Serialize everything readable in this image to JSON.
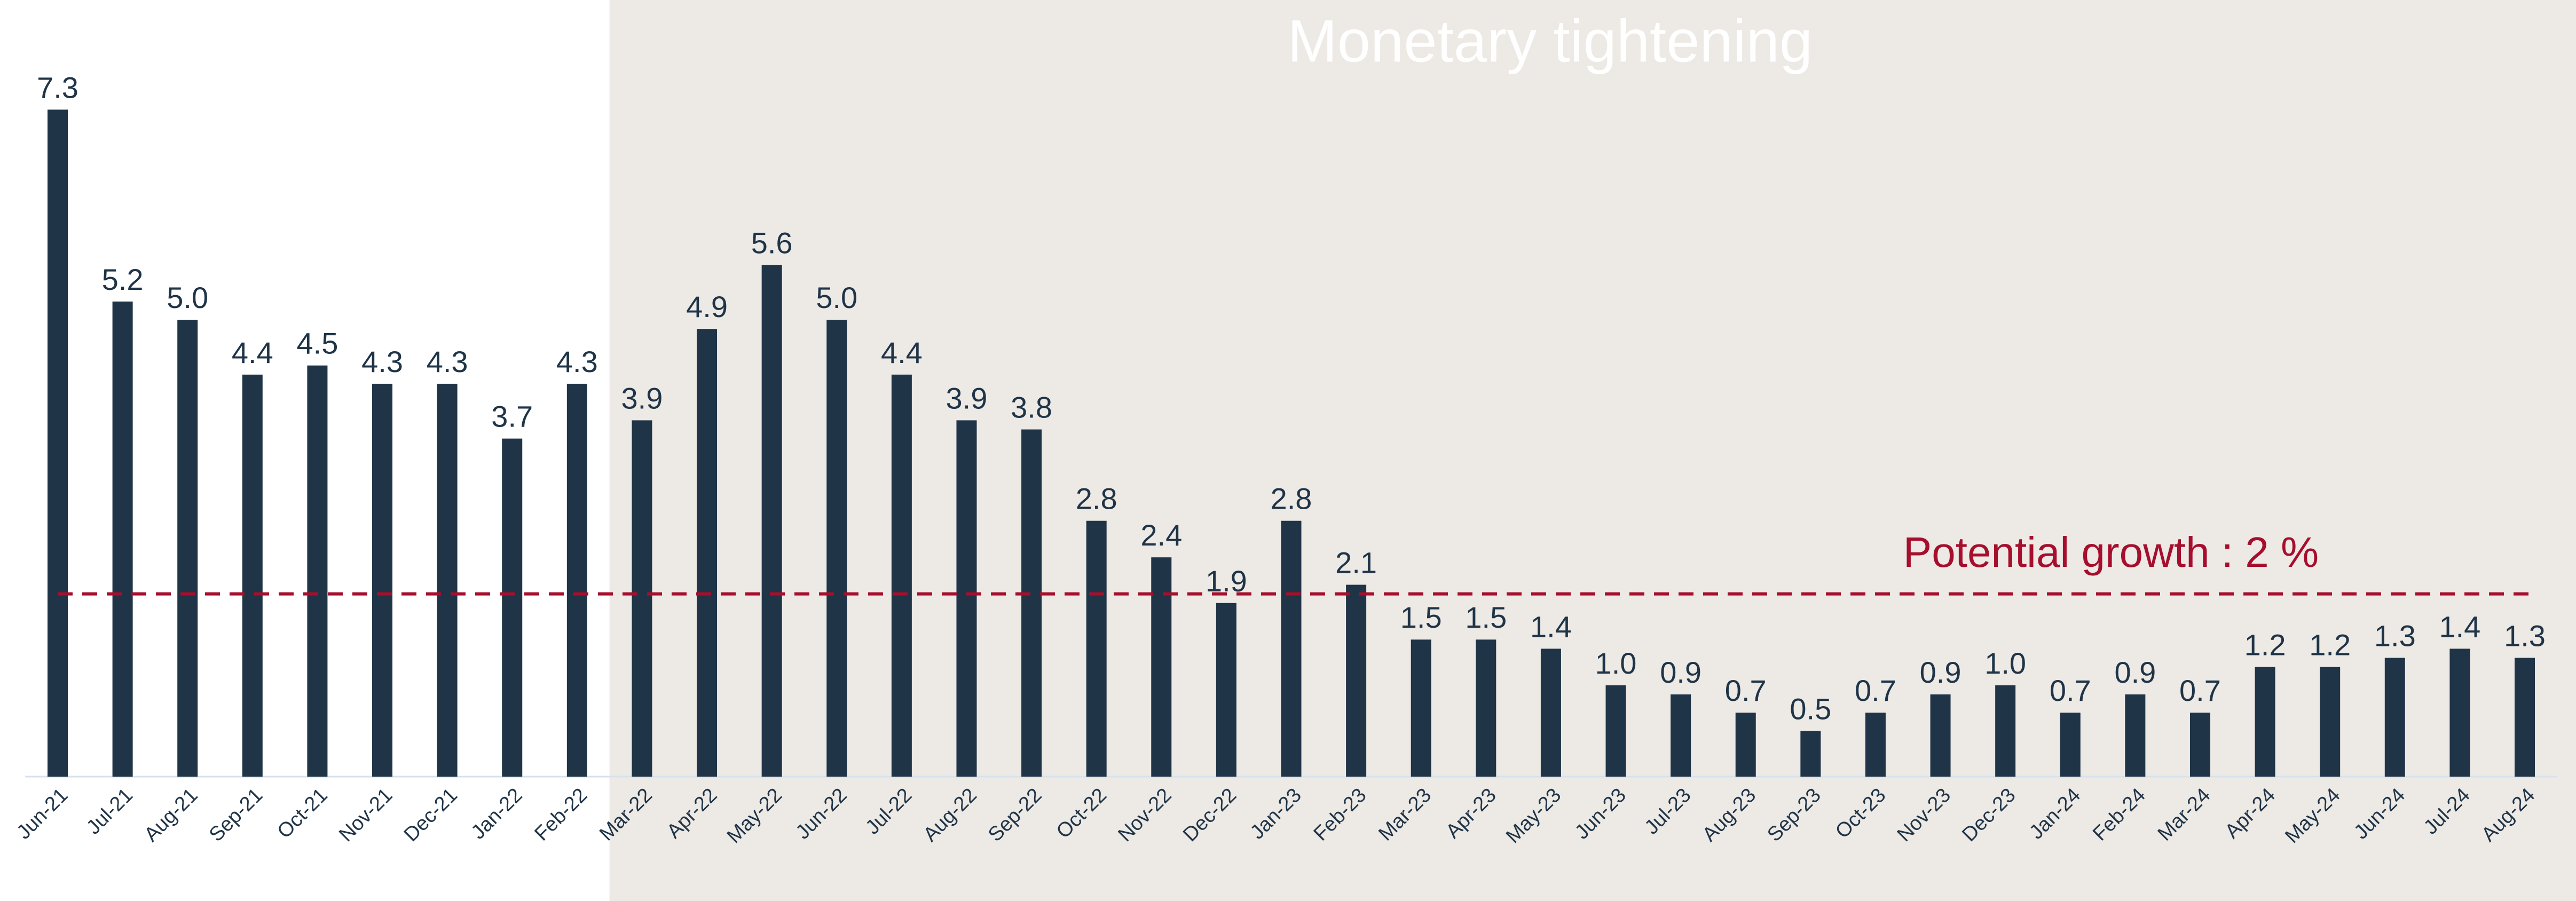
{
  "chart_data": {
    "type": "bar",
    "categories": [
      "Jun-21",
      "Jul-21",
      "Aug-21",
      "Sep-21",
      "Oct-21",
      "Nov-21",
      "Dec-21",
      "Jan-22",
      "Feb-22",
      "Mar-22",
      "Apr-22",
      "May-22",
      "Jun-22",
      "Jul-22",
      "Aug-22",
      "Sep-22",
      "Oct-22",
      "Nov-22",
      "Dec-22",
      "Jan-23",
      "Feb-23",
      "Mar-23",
      "Apr-23",
      "May-23",
      "Jun-23",
      "Jul-23",
      "Aug-23",
      "Sep-23",
      "Oct-23",
      "Nov-23",
      "Dec-23",
      "Jan-24",
      "Feb-24",
      "Mar-24",
      "Apr-24",
      "May-24",
      "Jun-24",
      "Jul-24",
      "Aug-24"
    ],
    "values": [
      7.3,
      5.2,
      5.0,
      4.4,
      4.5,
      4.3,
      4.3,
      3.7,
      4.3,
      3.9,
      4.9,
      5.6,
      5.0,
      4.4,
      3.9,
      3.8,
      2.8,
      2.4,
      1.9,
      2.8,
      2.1,
      1.5,
      1.5,
      1.4,
      1.0,
      0.9,
      0.7,
      0.5,
      0.7,
      0.9,
      1.0,
      0.7,
      0.9,
      0.7,
      1.2,
      1.2,
      1.3,
      1.4,
      1.3
    ],
    "value_labels": [
      "7.3",
      "5.2",
      "5.0",
      "4.4",
      "4.5",
      "4.3",
      "4.3",
      "3.7",
      "4.3",
      "3.9",
      "4.9",
      "5.6",
      "5.0",
      "4.4",
      "3.9",
      "3.8",
      "2.8",
      "2.4",
      "1.9",
      "2.8",
      "2.1",
      "1.5",
      "1.5",
      "1.4",
      "1.0",
      "0.9",
      "0.7",
      "0.5",
      "0.7",
      "0.9",
      "1.0",
      "0.7",
      "0.9",
      "0.7",
      "1.2",
      "1.2",
      "1.3",
      "1.4",
      "1.3"
    ],
    "color": "#1f3447",
    "ylim": [
      0,
      8.5
    ],
    "grid": false,
    "shaded_region": {
      "label": "Monetary tightening",
      "start": "Mar-22",
      "end": "Aug-24",
      "color": "#ede9e5"
    },
    "reference_line": {
      "value": 2,
      "label": "Potential growth : 2 %",
      "color": "#a50f2d"
    }
  }
}
